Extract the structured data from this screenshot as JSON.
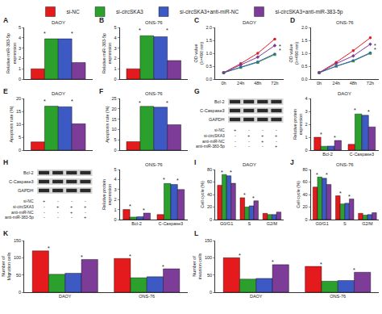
{
  "chart_data": [
    {
      "label": "A",
      "title": "DAOY",
      "type": "bar",
      "ylabel": "Relative miR-383-5p expression",
      "tick_labels": "y",
      "categories": [
        null
      ],
      "ylim": [
        0,
        5
      ],
      "yticks": [
        0,
        1,
        2,
        3,
        4,
        5
      ],
      "series": [
        {
          "name": "si-NC",
          "color": "#e41a1c",
          "values": [
            1.0
          ]
        },
        {
          "name": "si-circSKA3",
          "color": "#2ca02c",
          "values": [
            3.9
          ]
        },
        {
          "name": "si-circSKA3+anti-miR-NC",
          "color": "#3d59c4",
          "values": [
            3.9
          ]
        },
        {
          "name": "si-circSKA3+anti-miR-383-5p",
          "color": "#7d3c98",
          "values": [
            1.6
          ]
        }
      ],
      "annotations": [
        {
          "text": "*",
          "x": -0.2,
          "y": 4.4
        },
        {
          "text": "*",
          "x": 0.2,
          "y": 4.4
        }
      ]
    },
    {
      "label": "B",
      "title": "ONS-76",
      "type": "bar",
      "ylabel": "Relative miR-383-5p expression",
      "tick_labels": "y",
      "categories": [
        null
      ],
      "ylim": [
        0,
        5
      ],
      "yticks": [
        0,
        1,
        2,
        3,
        4,
        5
      ],
      "series": [
        {
          "name": "si-NC",
          "color": "#e41a1c",
          "values": [
            1.0
          ]
        },
        {
          "name": "si-circSKA3",
          "color": "#2ca02c",
          "values": [
            4.2
          ]
        },
        {
          "name": "si-circSKA3+anti-miR-NC",
          "color": "#3d59c4",
          "values": [
            4.1
          ]
        },
        {
          "name": "si-circSKA3+anti-miR-383-5p",
          "color": "#7d3c98",
          "values": [
            1.8
          ]
        }
      ],
      "annotations": [
        {
          "text": "*",
          "x": -0.2,
          "y": 4.7
        },
        {
          "text": "*",
          "x": 0.2,
          "y": 4.7
        }
      ]
    },
    {
      "label": "C",
      "title": "DAOY",
      "type": "line",
      "ylabel": "OD value (λ=490 nm)",
      "categories": [
        "0h",
        "24h",
        "48h",
        "72h"
      ],
      "ylim": [
        0,
        2
      ],
      "yticks": [
        {
          "value": 0,
          "label": "0.0"
        },
        {
          "value": 0.5,
          "label": "0.5"
        },
        {
          "value": 1,
          "label": "1.0"
        },
        {
          "value": 1.5,
          "label": "1.5"
        },
        {
          "value": 2,
          "label": "2.0"
        }
      ],
      "series": [
        {
          "name": "si-NC",
          "color": "#e41a1c",
          "marker": "circle",
          "values": [
            0.25,
            0.6,
            1.0,
            1.55
          ]
        },
        {
          "name": "si-circSKA3",
          "color": "#2ca02c",
          "marker": "square",
          "values": [
            0.25,
            0.45,
            0.65,
            0.95
          ]
        },
        {
          "name": "si-circSKA3+anti-miR-NC",
          "color": "#3d59c4",
          "marker": "triangle-up",
          "values": [
            0.25,
            0.47,
            0.67,
            0.98
          ]
        },
        {
          "name": "si-circSKA3+anti-miR-383-5p",
          "color": "#7d3c98",
          "marker": "diamond",
          "values": [
            0.25,
            0.55,
            0.85,
            1.3
          ]
        }
      ],
      "annotations": [
        {
          "text": "*",
          "x": 3.3,
          "y": 1.25
        },
        {
          "text": "*",
          "x": 3.3,
          "y": 1.1
        }
      ]
    },
    {
      "label": "D",
      "title": "ONS-76",
      "type": "line",
      "ylabel": "OD value (λ=490 nm)",
      "categories": [
        "0h",
        "24h",
        "48h",
        "72h"
      ],
      "ylim": [
        0,
        2
      ],
      "yticks": [
        {
          "value": 0,
          "label": "0.0"
        },
        {
          "value": 0.5,
          "label": "0.5"
        },
        {
          "value": 1,
          "label": "1.0"
        },
        {
          "value": 1.5,
          "label": "1.5"
        },
        {
          "value": 2,
          "label": "2.0"
        }
      ],
      "series": [
        {
          "name": "si-NC",
          "color": "#e41a1c",
          "marker": "circle",
          "values": [
            0.25,
            0.65,
            1.1,
            1.6
          ]
        },
        {
          "name": "si-circSKA3",
          "color": "#2ca02c",
          "marker": "square",
          "values": [
            0.25,
            0.5,
            0.7,
            1.0
          ]
        },
        {
          "name": "si-circSKA3+anti-miR-NC",
          "color": "#3d59c4",
          "marker": "triangle-up",
          "values": [
            0.25,
            0.5,
            0.72,
            1.02
          ]
        },
        {
          "name": "si-circSKA3+anti-miR-383-5p",
          "color": "#7d3c98",
          "marker": "diamond",
          "values": [
            0.25,
            0.6,
            0.9,
            1.35
          ]
        }
      ],
      "annotations": [
        {
          "text": "*",
          "x": 3.3,
          "y": 1.3
        },
        {
          "text": "*",
          "x": 3.3,
          "y": 1.15
        }
      ]
    },
    {
      "label": "E",
      "title": "DAOY",
      "type": "bar",
      "ylabel": "Apoptosis rate (%)",
      "tick_labels": "y",
      "categories": [
        null
      ],
      "ylim": [
        0,
        20
      ],
      "yticks": [
        0,
        5,
        10,
        15,
        20
      ],
      "series": [
        {
          "name": "si-NC",
          "color": "#e41a1c",
          "values": [
            3.2
          ]
        },
        {
          "name": "si-circSKA3",
          "color": "#2ca02c",
          "values": [
            17.0
          ]
        },
        {
          "name": "si-circSKA3+anti-miR-NC",
          "color": "#3d59c4",
          "values": [
            16.8
          ]
        },
        {
          "name": "si-circSKA3+anti-miR-383-5p",
          "color": "#7d3c98",
          "values": [
            10.2
          ]
        }
      ],
      "annotations": [
        {
          "text": "*",
          "x": -0.2,
          "y": 18.8
        },
        {
          "text": "*",
          "x": 0.2,
          "y": 18.8
        }
      ]
    },
    {
      "label": "F",
      "title": "ONS-76",
      "type": "bar",
      "ylabel": "Apoptosis rate (%)",
      "tick_labels": "y",
      "categories": [
        null
      ],
      "ylim": [
        0,
        25
      ],
      "yticks": [
        0,
        5,
        10,
        15,
        20,
        25
      ],
      "series": [
        {
          "name": "si-NC",
          "color": "#e41a1c",
          "values": [
            4.1
          ]
        },
        {
          "name": "si-circSKA3",
          "color": "#2ca02c",
          "values": [
            21.2
          ]
        },
        {
          "name": "si-circSKA3+anti-miR-NC",
          "color": "#3d59c4",
          "values": [
            20.8
          ]
        },
        {
          "name": "si-circSKA3+anti-miR-383-5p",
          "color": "#7d3c98",
          "values": [
            12.3
          ]
        }
      ],
      "annotations": [
        {
          "text": "*",
          "x": -0.2,
          "y": 23
        },
        {
          "text": "*",
          "x": 0.2,
          "y": 23
        }
      ]
    },
    {
      "label": "G",
      "title": "DAOY",
      "type": "bar",
      "ylabel": "Relative protein expression",
      "categories": [
        "Bcl-2",
        "C-Caspase3"
      ],
      "ylim": [
        0,
        4
      ],
      "yticks": [
        0,
        1,
        2,
        3,
        4
      ],
      "series": [
        {
          "name": "si-NC",
          "color": "#e41a1c",
          "values": [
            1.0,
            0.45
          ]
        },
        {
          "name": "si-circSKA3",
          "color": "#2ca02c",
          "values": [
            0.3,
            2.8
          ]
        },
        {
          "name": "si-circSKA3+anti-miR-NC",
          "color": "#3d59c4",
          "values": [
            0.32,
            2.7
          ]
        },
        {
          "name": "si-circSKA3+anti-miR-383-5p",
          "color": "#7d3c98",
          "values": [
            0.75,
            1.8
          ]
        }
      ],
      "annotations": [
        {
          "text": "*",
          "x": -0.2,
          "y": 1.25
        },
        {
          "text": "*",
          "x": 0.2,
          "y": 1.0
        },
        {
          "text": "*",
          "x": 0.8,
          "y": 3.1
        },
        {
          "text": "*",
          "x": 1.2,
          "y": 3.0
        }
      ],
      "blot": {
        "rows": [
          "Bcl-2",
          "C-Caspase3",
          "GAPDH"
        ],
        "conditions": [
          {
            "name": "si-NC",
            "marks": [
              "+",
              "-",
              "-",
              "-"
            ]
          },
          {
            "name": "si-circSKA3",
            "marks": [
              "-",
              "+",
              "+",
              "+"
            ]
          },
          {
            "name": "anti-miR-NC",
            "marks": [
              "-",
              "-",
              "+",
              "-"
            ]
          },
          {
            "name": "anti-miR-383-5p",
            "marks": [
              "-",
              "-",
              "-",
              "+"
            ]
          }
        ]
      }
    },
    {
      "label": "H",
      "title": "ONS-76",
      "type": "bar",
      "ylabel": "Relative protein expression",
      "categories": [
        "Bcl-2",
        "C-Caspase3"
      ],
      "ylim": [
        0,
        5
      ],
      "yticks": [
        0,
        1,
        2,
        3,
        4,
        5
      ],
      "series": [
        {
          "name": "si-NC",
          "color": "#e41a1c",
          "values": [
            1.0,
            0.5
          ]
        },
        {
          "name": "si-circSKA3",
          "color": "#2ca02c",
          "values": [
            0.25,
            3.6
          ]
        },
        {
          "name": "si-circSKA3+anti-miR-NC",
          "color": "#3d59c4",
          "values": [
            0.28,
            3.5
          ]
        },
        {
          "name": "si-circSKA3+anti-miR-383-5p",
          "color": "#7d3c98",
          "values": [
            0.65,
            3.0
          ]
        }
      ],
      "annotations": [
        {
          "text": "*",
          "x": -0.2,
          "y": 1.3
        },
        {
          "text": "*",
          "x": 0.2,
          "y": 0.95
        },
        {
          "text": "*",
          "x": 0.8,
          "y": 4.0
        },
        {
          "text": "*",
          "x": 1.2,
          "y": 3.9
        }
      ],
      "blot": {
        "rows": [
          "Bcl-2",
          "C-Caspase3",
          "GAPDH"
        ],
        "conditions": [
          {
            "name": "si-NC",
            "marks": [
              "+",
              "-",
              "-",
              "-"
            ]
          },
          {
            "name": "si-circSKA3",
            "marks": [
              "-",
              "+",
              "+",
              "+"
            ]
          },
          {
            "name": "anti-miR-NC",
            "marks": [
              "-",
              "-",
              "+",
              "-"
            ]
          },
          {
            "name": "anti-miR-383-5p",
            "marks": [
              "-",
              "-",
              "-",
              "+"
            ]
          }
        ]
      }
    },
    {
      "label": "I",
      "title": "DAOY",
      "type": "bar",
      "ylabel": "Cell cycle (%)",
      "categories": [
        "G0/G1",
        "S",
        "G2/M"
      ],
      "ylim": [
        0,
        80
      ],
      "yticks": [
        0,
        20,
        40,
        60,
        80
      ],
      "series": [
        {
          "name": "si-NC",
          "color": "#e41a1c",
          "values": [
            55,
            35,
            10
          ]
        },
        {
          "name": "si-circSKA3",
          "color": "#2ca02c",
          "values": [
            72,
            20,
            8
          ]
        },
        {
          "name": "si-circSKA3+anti-miR-NC",
          "color": "#3d59c4",
          "values": [
            70,
            22,
            8
          ]
        },
        {
          "name": "si-circSKA3+anti-miR-383-5p",
          "color": "#7d3c98",
          "values": [
            58,
            30,
            12
          ]
        }
      ],
      "annotations": [
        {
          "text": "*",
          "x": -0.2,
          "y": 76
        },
        {
          "text": "*",
          "x": 0.2,
          "y": 75
        },
        {
          "text": "*",
          "x": 0.8,
          "y": 39
        },
        {
          "text": "*",
          "x": 1.2,
          "y": 34
        }
      ]
    },
    {
      "label": "J",
      "title": "ONS-76",
      "type": "bar",
      "ylabel": "Cell cycle (%)",
      "categories": [
        "G0/G1",
        "S",
        "G2/M"
      ],
      "ylim": [
        0,
        80
      ],
      "yticks": [
        0,
        20,
        40,
        60,
        80
      ],
      "series": [
        {
          "name": "si-NC",
          "color": "#e41a1c",
          "values": [
            52,
            38,
            10
          ]
        },
        {
          "name": "si-circSKA3",
          "color": "#2ca02c",
          "values": [
            68,
            25,
            7
          ]
        },
        {
          "name": "si-circSKA3+anti-miR-NC",
          "color": "#3d59c4",
          "values": [
            66,
            26,
            8
          ]
        },
        {
          "name": "si-circSKA3+anti-miR-383-5p",
          "color": "#7d3c98",
          "values": [
            56,
            33,
            11
          ]
        }
      ],
      "annotations": [
        {
          "text": "*",
          "x": -0.2,
          "y": 72
        },
        {
          "text": "*",
          "x": 0.2,
          "y": 71
        },
        {
          "text": "*",
          "x": 0.8,
          "y": 42
        },
        {
          "text": "*",
          "x": 1.2,
          "y": 37
        }
      ]
    },
    {
      "label": "K",
      "type": "bar",
      "ylabel": "Number of Migration cells",
      "categories": [
        "DAOY",
        "ONS-76"
      ],
      "ylim": [
        0,
        150
      ],
      "yticks": [
        0,
        50,
        100,
        150
      ],
      "series": [
        {
          "name": "si-NC",
          "color": "#e41a1c",
          "values": [
            120,
            98
          ]
        },
        {
          "name": "si-circSKA3",
          "color": "#2ca02c",
          "values": [
            52,
            42
          ]
        },
        {
          "name": "si-circSKA3+anti-miR-NC",
          "color": "#3d59c4",
          "values": [
            55,
            45
          ]
        },
        {
          "name": "si-circSKA3+anti-miR-383-5p",
          "color": "#7d3c98",
          "values": [
            95,
            68
          ]
        }
      ],
      "annotations": [
        {
          "text": "*",
          "x": -0.2,
          "y": 127
        },
        {
          "text": "*",
          "x": 0.2,
          "y": 102
        },
        {
          "text": "*",
          "x": 0.8,
          "y": 105
        },
        {
          "text": "*",
          "x": 1.2,
          "y": 75
        }
      ]
    },
    {
      "label": "L",
      "type": "bar",
      "ylabel": "Number of invasion cells",
      "categories": [
        "DAOY",
        "ONS-76"
      ],
      "ylim": [
        0,
        150
      ],
      "yticks": [
        0,
        50,
        100,
        150
      ],
      "series": [
        {
          "name": "si-NC",
          "color": "#e41a1c",
          "values": [
            100,
            75
          ]
        },
        {
          "name": "si-circSKA3",
          "color": "#2ca02c",
          "values": [
            38,
            32
          ]
        },
        {
          "name": "si-circSKA3+anti-miR-NC",
          "color": "#3d59c4",
          "values": [
            40,
            34
          ]
        },
        {
          "name": "si-circSKA3+anti-miR-383-5p",
          "color": "#7d3c98",
          "values": [
            80,
            58
          ]
        }
      ],
      "annotations": [
        {
          "text": "*",
          "x": -0.2,
          "y": 107
        },
        {
          "text": "*",
          "x": 0.2,
          "y": 87
        },
        {
          "text": "*",
          "x": 0.8,
          "y": 82
        },
        {
          "text": "*",
          "x": 1.2,
          "y": 65
        }
      ]
    }
  ]
}
